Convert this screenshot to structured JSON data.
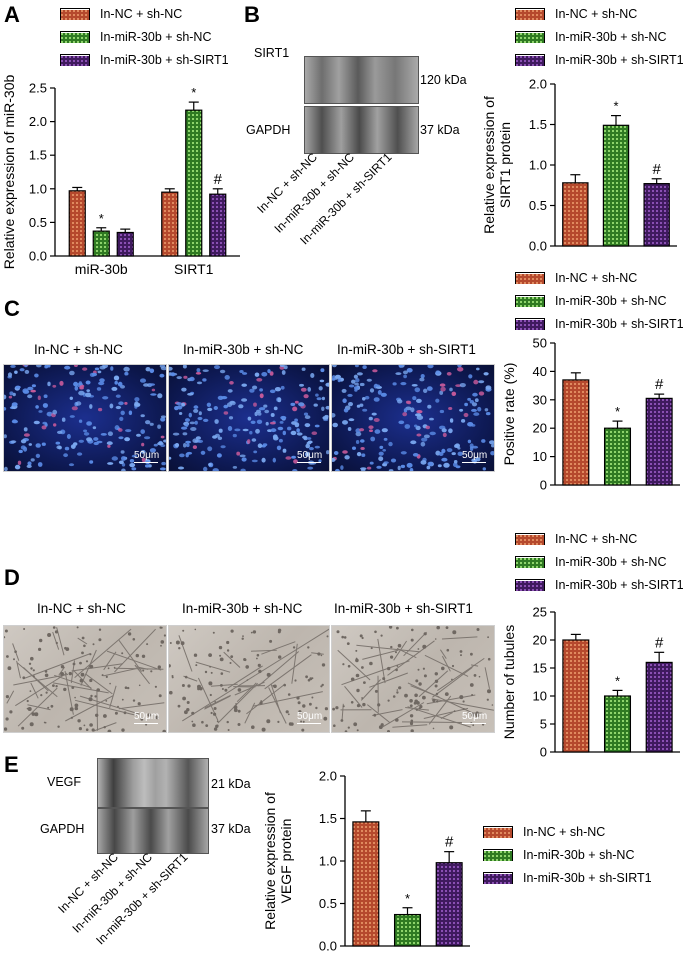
{
  "panels": {
    "A": "A",
    "B": "B",
    "C": "C",
    "D": "D",
    "E": "E"
  },
  "groups": [
    "In-NC + sh-NC",
    "In-miR-30b + sh-NC",
    "In-miR-30b + sh-SIRT1"
  ],
  "colors": {
    "group1": "#b5492d",
    "group2": "#4fa83b",
    "group3": "#5a2a7e"
  },
  "blot_B": {
    "rows": [
      "SIRT1",
      "GAPDH"
    ],
    "kda": [
      "120 kDa",
      "37 kDa"
    ]
  },
  "blot_E": {
    "rows": [
      "VEGF",
      "GAPDH"
    ],
    "kda": [
      "21 kDa",
      "37 kDa"
    ]
  },
  "micro_C": {
    "captions": [
      "In-NC + sh-NC",
      "In-miR-30b + sh-NC",
      "In-miR-30b + sh-SIRT1"
    ],
    "scale": "50μm"
  },
  "micro_D": {
    "captions": [
      "In-NC + sh-NC",
      "In-miR-30b + sh-NC",
      "In-miR-30b + sh-SIRT1"
    ],
    "scale": "50μm"
  },
  "chart_data": [
    {
      "panel": "A",
      "type": "bar",
      "categories": [
        "miR-30b",
        "SIRT1"
      ],
      "series": [
        {
          "name": "In-NC + sh-NC",
          "values": [
            0.97,
            0.95
          ],
          "errors": [
            0.05,
            0.05
          ],
          "marks": [
            "",
            ""
          ]
        },
        {
          "name": "In-miR-30b + sh-NC",
          "values": [
            0.37,
            2.17
          ],
          "errors": [
            0.05,
            0.12
          ],
          "marks": [
            "*",
            "*"
          ]
        },
        {
          "name": "In-miR-30b + sh-SIRT1",
          "values": [
            0.35,
            0.92
          ],
          "errors": [
            0.05,
            0.08
          ],
          "marks": [
            "",
            "#"
          ]
        }
      ],
      "ylabel": "Relative expression of miR-30b",
      "ylim": [
        0,
        2.5
      ],
      "yticks": [
        "0.0",
        "0.5",
        "1.0",
        "1.5",
        "2.0",
        "2.5"
      ]
    },
    {
      "panel": "B",
      "type": "bar",
      "categories": [
        "In-NC + sh-NC",
        "In-miR-30b + sh-NC",
        "In-miR-30b + sh-SIRT1"
      ],
      "values": [
        0.78,
        1.49,
        0.77
      ],
      "errors": [
        0.1,
        0.12,
        0.06
      ],
      "marks": [
        "",
        "*",
        "#"
      ],
      "ylabel": "Relative expression of SIRT1 protein",
      "ylim": [
        0,
        2.0
      ],
      "yticks": [
        "0.0",
        "0.5",
        "1.0",
        "1.5",
        "2.0"
      ]
    },
    {
      "panel": "C",
      "type": "bar",
      "categories": [
        "In-NC + sh-NC",
        "In-miR-30b + sh-NC",
        "In-miR-30b + sh-SIRT1"
      ],
      "values": [
        37,
        20,
        30.5
      ],
      "errors": [
        2.5,
        2.5,
        1.5
      ],
      "marks": [
        "",
        "*",
        "#"
      ],
      "ylabel": "Positive rate (%)",
      "ylim": [
        0,
        50
      ],
      "yticks": [
        "0",
        "10",
        "20",
        "30",
        "40",
        "50"
      ]
    },
    {
      "panel": "D",
      "type": "bar",
      "categories": [
        "In-NC + sh-NC",
        "In-miR-30b + sh-NC",
        "In-miR-30b + sh-SIRT1"
      ],
      "values": [
        20,
        10,
        16
      ],
      "errors": [
        1,
        1,
        1.8
      ],
      "marks": [
        "",
        "*",
        "#"
      ],
      "ylabel": "Number of tubules",
      "ylim": [
        0,
        25
      ],
      "yticks": [
        "0",
        "5",
        "10",
        "15",
        "20",
        "25"
      ]
    },
    {
      "panel": "E",
      "type": "bar",
      "categories": [
        "In-NC + sh-NC",
        "In-miR-30b + sh-NC",
        "In-miR-30b + sh-SIRT1"
      ],
      "values": [
        1.46,
        0.37,
        0.98
      ],
      "errors": [
        0.13,
        0.08,
        0.13
      ],
      "marks": [
        "",
        "*",
        "#"
      ],
      "ylabel": "Relative expression of VEGF protein",
      "ylim": [
        0,
        2.0
      ],
      "yticks": [
        "0.0",
        "0.5",
        "1.0",
        "1.5",
        "2.0"
      ]
    }
  ]
}
